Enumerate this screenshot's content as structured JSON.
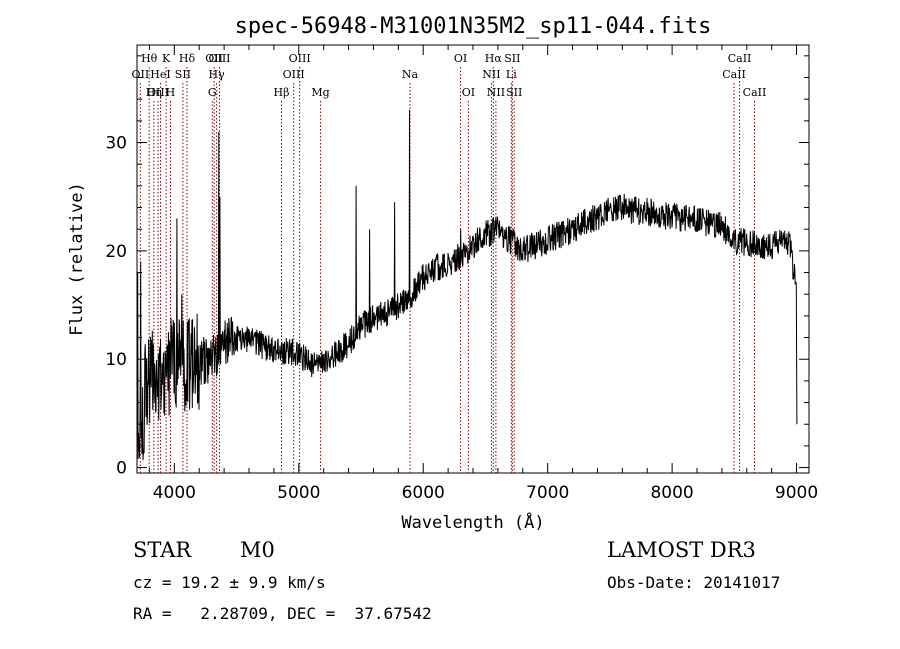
{
  "chart_data": {
    "type": "line",
    "title": "spec-56948-M31001N35M2_sp11-044.fits",
    "xlabel": "Wavelength (Å)",
    "ylabel": "Flux (relative)",
    "xlim": [
      3700,
      9100
    ],
    "ylim": [
      -0.5,
      39
    ],
    "xticks": [
      4000,
      5000,
      6000,
      7000,
      8000,
      9000
    ],
    "xtick_labels": [
      "4000",
      "5000",
      "6000",
      "7000",
      "8000",
      "9000"
    ],
    "yticks": [
      0,
      10,
      20,
      30
    ],
    "ytick_labels": [
      "0",
      "10",
      "20",
      "30"
    ],
    "grid": false,
    "line_color": "#000000",
    "marker_color": "#8b0000",
    "continuum": [
      [
        3700,
        6
      ],
      [
        3800,
        8
      ],
      [
        3900,
        9
      ],
      [
        4000,
        9.5
      ],
      [
        4100,
        9.5
      ],
      [
        4200,
        9.8
      ],
      [
        4300,
        10
      ],
      [
        4400,
        11.5
      ],
      [
        4500,
        12
      ],
      [
        4600,
        11.8
      ],
      [
        4700,
        11.3
      ],
      [
        4800,
        10.8
      ],
      [
        4900,
        10.7
      ],
      [
        5000,
        10.5
      ],
      [
        5100,
        9.5
      ],
      [
        5200,
        9.5
      ],
      [
        5300,
        10.5
      ],
      [
        5400,
        11.5
      ],
      [
        5500,
        13
      ],
      [
        5600,
        13.8
      ],
      [
        5700,
        14.2
      ],
      [
        5800,
        15
      ],
      [
        5900,
        16
      ],
      [
        6000,
        17.5
      ],
      [
        6100,
        18.5
      ],
      [
        6200,
        18.8
      ],
      [
        6300,
        19.5
      ],
      [
        6400,
        20.5
      ],
      [
        6500,
        21.5
      ],
      [
        6600,
        22
      ],
      [
        6700,
        21
      ],
      [
        6800,
        20
      ],
      [
        6900,
        20.5
      ],
      [
        7000,
        21
      ],
      [
        7100,
        21.5
      ],
      [
        7200,
        22
      ],
      [
        7300,
        22.7
      ],
      [
        7400,
        23.2
      ],
      [
        7500,
        23.7
      ],
      [
        7600,
        24
      ],
      [
        7700,
        23.7
      ],
      [
        7800,
        23.6
      ],
      [
        7900,
        23.3
      ],
      [
        8000,
        23.2
      ],
      [
        8100,
        23
      ],
      [
        8200,
        22.8
      ],
      [
        8300,
        22.5
      ],
      [
        8400,
        22.3
      ],
      [
        8500,
        21
      ],
      [
        8600,
        20.8
      ],
      [
        8700,
        20.5
      ],
      [
        8800,
        20.5
      ],
      [
        8900,
        21
      ],
      [
        8950,
        20.5
      ],
      [
        9000,
        16
      ]
    ],
    "emission_spikes": [
      [
        3705,
        18
      ],
      [
        3730,
        19
      ],
      [
        4020,
        23
      ],
      [
        4060,
        16
      ],
      [
        4358,
        31
      ],
      [
        4365,
        25
      ],
      [
        5460,
        26
      ],
      [
        5570,
        22
      ],
      [
        5770,
        24.5
      ],
      [
        5890,
        33
      ],
      [
        6300,
        22
      ]
    ],
    "line_markers": [
      {
        "label": "Hθ",
        "wavelength": 3798,
        "row": 1
      },
      {
        "label": "OII",
        "wavelength": 3727,
        "row": 2
      },
      {
        "label": "OIII",
        "wavelength": 3869,
        "row": 3
      },
      {
        "label": "HeI",
        "wavelength": 3889,
        "row": 2
      },
      {
        "label": "Hη",
        "wavelength": 3835,
        "row": 3
      },
      {
        "label": "K",
        "wavelength": 3934,
        "row": 1
      },
      {
        "label": "H",
        "wavelength": 3969,
        "row": 3
      },
      {
        "label": "SII",
        "wavelength": 4069,
        "row": 2
      },
      {
        "label": "Hδ",
        "wavelength": 4102,
        "row": 1
      },
      {
        "label": "OII",
        "wavelength": 4320,
        "row": 1
      },
      {
        "label": "Hγ",
        "wavelength": 4340,
        "row": 2
      },
      {
        "label": "G",
        "wavelength": 4305,
        "row": 3
      },
      {
        "label": "OIII",
        "wavelength": 4363,
        "row": 1
      },
      {
        "label": "Hβ",
        "wavelength": 4861,
        "row": 3
      },
      {
        "label": "OIII",
        "wavelength": 4959,
        "row": 2
      },
      {
        "label": "OIII",
        "wavelength": 5007,
        "row": 1
      },
      {
        "label": "Mg",
        "wavelength": 5175,
        "row": 3
      },
      {
        "label": "Na",
        "wavelength": 5894,
        "row": 2
      },
      {
        "label": "OI",
        "wavelength": 6300,
        "row": 1
      },
      {
        "label": "OI",
        "wavelength": 6363,
        "row": 3
      },
      {
        "label": "NII",
        "wavelength": 6548,
        "row": 2
      },
      {
        "label": "Hα",
        "wavelength": 6563,
        "row": 1
      },
      {
        "label": "NII",
        "wavelength": 6584,
        "row": 3
      },
      {
        "label": "SII",
        "wavelength": 6716,
        "row": 1
      },
      {
        "label": "Li",
        "wavelength": 6708,
        "row": 2
      },
      {
        "label": "SII",
        "wavelength": 6731,
        "row": 3
      },
      {
        "label": "CaII",
        "wavelength": 8498,
        "row": 2
      },
      {
        "label": "CaII",
        "wavelength": 8542,
        "row": 1
      },
      {
        "label": "CaII",
        "wavelength": 8662,
        "row": 3
      }
    ]
  },
  "info": {
    "object_class": "STAR",
    "subclass": "M0",
    "survey": "LAMOST DR3",
    "cz": "cz = 19.2 ± 9.9 km/s",
    "obs_date": "Obs-Date: 20141017",
    "coords": "RA =   2.28709, DEC =  37.67542"
  }
}
